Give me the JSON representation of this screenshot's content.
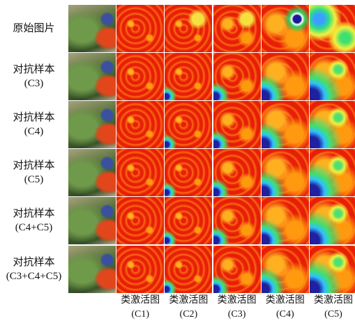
{
  "row_labels": [
    [
      "原始图片"
    ],
    [
      "对抗样本",
      "(C3)"
    ],
    [
      "对抗样本",
      "(C4)"
    ],
    [
      "对抗样本",
      "(C5)"
    ],
    [
      "对抗样本",
      "(C4+C5)"
    ],
    [
      "对抗样本",
      "(C3+C4+C5)"
    ]
  ],
  "column_labels": [
    [
      "类激活图",
      "(C1)"
    ],
    [
      "类激活图",
      "(C2)"
    ],
    [
      "类激活图",
      "(C3)"
    ],
    [
      "类激活图",
      "(C4)"
    ],
    [
      "类激活图",
      "(C5)"
    ]
  ]
}
